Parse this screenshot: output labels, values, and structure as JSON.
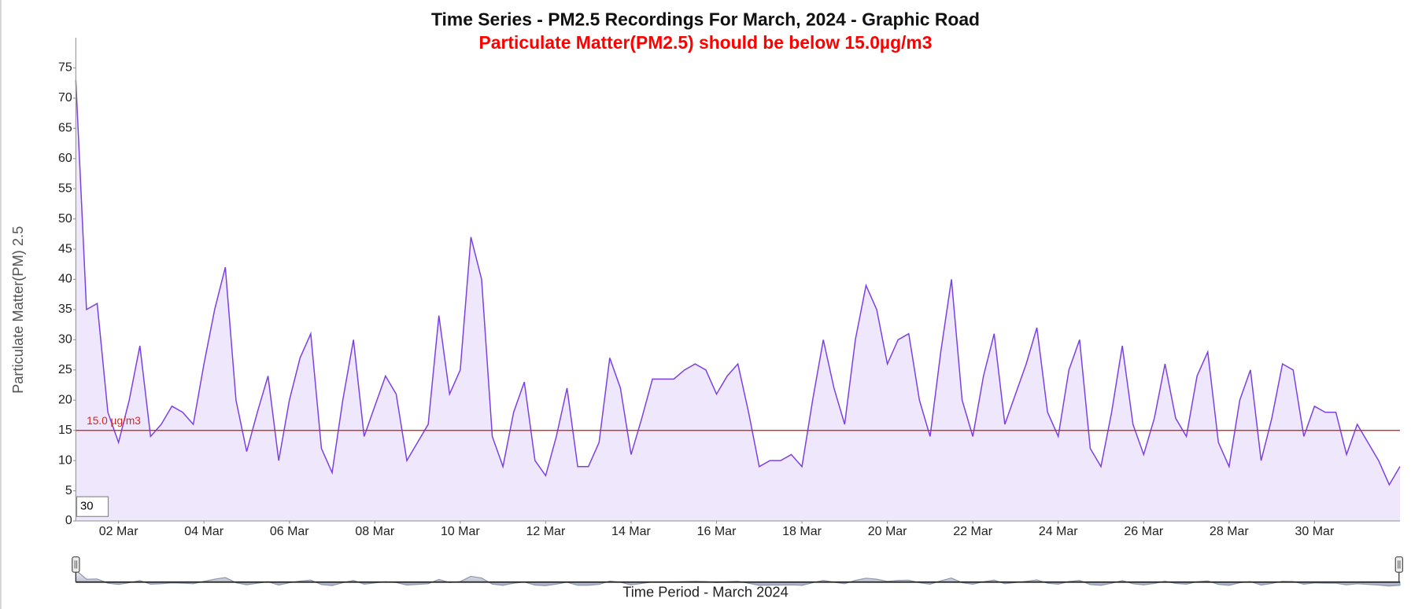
{
  "chart_data": {
    "type": "area",
    "title": "Time Series - PM2.5 Recordings For March, 2024 - Graphic Road",
    "subtitle": "Particulate Matter(PM2.5) should be below 15.0µg/m3",
    "y_label": "Particulate Matter(PM) 2.5",
    "x_label": "Time Period - March 2024",
    "rolling_period": 30,
    "threshold": {
      "value": 15,
      "label": "15.0 µg/m3",
      "color": "#e02020"
    },
    "color": "#7b3fe4",
    "fill": "#efe8fc",
    "xlim": [
      1,
      32
    ],
    "ylim": [
      0,
      80
    ],
    "yticks": [
      0,
      5,
      10,
      15,
      20,
      25,
      30,
      35,
      40,
      45,
      50,
      55,
      60,
      65,
      70,
      75
    ],
    "xticks": [
      {
        "value": 2,
        "label": "02 Mar"
      },
      {
        "value": 4,
        "label": "04 Mar"
      },
      {
        "value": 6,
        "label": "06 Mar"
      },
      {
        "value": 8,
        "label": "08 Mar"
      },
      {
        "value": 10,
        "label": "10 Mar"
      },
      {
        "value": 12,
        "label": "12 Mar"
      },
      {
        "value": 14,
        "label": "14 Mar"
      },
      {
        "value": 16,
        "label": "16 Mar"
      },
      {
        "value": 18,
        "label": "18 Mar"
      },
      {
        "value": 20,
        "label": "20 Mar"
      },
      {
        "value": 22,
        "label": "22 Mar"
      },
      {
        "value": 24,
        "label": "24 Mar"
      },
      {
        "value": 26,
        "label": "26 Mar"
      },
      {
        "value": 28,
        "label": "28 Mar"
      },
      {
        "value": 30,
        "label": "30 Mar"
      }
    ],
    "x": [
      1,
      1.25,
      1.5,
      1.75,
      2,
      2.25,
      2.5,
      2.75,
      3,
      3.25,
      3.5,
      3.75,
      4,
      4.25,
      4.5,
      4.75,
      5,
      5.25,
      5.5,
      5.75,
      6,
      6.25,
      6.5,
      6.75,
      7,
      7.25,
      7.5,
      7.75,
      8,
      8.25,
      8.5,
      8.75,
      9,
      9.25,
      9.5,
      9.75,
      10,
      10.25,
      10.5,
      10.75,
      11,
      11.25,
      11.5,
      11.75,
      12,
      12.25,
      12.5,
      12.75,
      13,
      13.25,
      13.5,
      13.75,
      14,
      14.25,
      14.5,
      14.75,
      15,
      15.25,
      15.5,
      15.75,
      16,
      16.25,
      16.5,
      16.75,
      17,
      17.25,
      17.5,
      17.75,
      18,
      18.25,
      18.5,
      18.75,
      19,
      19.25,
      19.5,
      19.75,
      20,
      20.25,
      20.5,
      20.75,
      21,
      21.25,
      21.5,
      21.75,
      22,
      22.25,
      22.5,
      22.75,
      23,
      23.25,
      23.5,
      23.75,
      24,
      24.25,
      24.5,
      24.75,
      25,
      25.25,
      25.5,
      25.75,
      26,
      26.25,
      26.5,
      26.75,
      27,
      27.25,
      27.5,
      27.75,
      28,
      28.25,
      28.5,
      28.75,
      29,
      29.25,
      29.5,
      29.75,
      30,
      30.25,
      30.5,
      30.75,
      31,
      31.25,
      31.5,
      31.75,
      32
    ],
    "values": [
      73,
      35,
      36,
      18,
      13,
      20,
      29,
      14,
      16,
      19,
      18,
      16,
      26,
      35,
      42,
      20,
      11.5,
      18,
      24,
      10,
      20,
      27,
      31,
      12,
      8,
      20,
      30,
      14,
      19,
      24,
      21,
      10,
      13,
      16,
      34,
      21,
      25,
      47,
      40,
      14,
      9,
      18,
      23,
      10,
      7.5,
      14,
      22,
      9,
      9,
      13,
      27,
      22,
      11,
      17,
      23.5,
      23.5,
      23.5,
      25,
      26,
      25,
      21,
      24,
      26,
      18,
      9,
      10,
      10,
      11,
      9,
      20,
      30,
      22,
      16,
      30,
      39,
      35,
      26,
      30,
      31,
      20,
      14,
      28,
      40,
      20,
      14,
      24,
      31,
      16,
      21,
      26,
      32,
      18,
      14,
      25,
      30,
      12,
      9,
      18,
      29,
      16,
      11,
      17,
      26,
      17,
      14,
      24,
      28,
      13,
      9,
      20,
      25,
      10,
      17,
      26,
      25,
      14,
      19,
      18,
      18,
      11,
      16,
      13,
      10,
      6,
      9
    ]
  }
}
